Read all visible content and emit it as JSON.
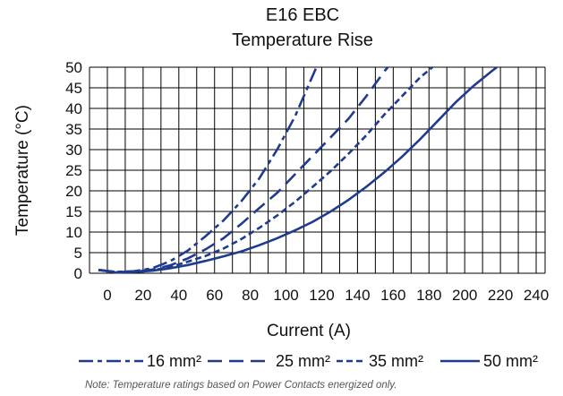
{
  "chart_data": {
    "type": "line",
    "title": "E16 EBC",
    "subtitle": "Temperature Rise",
    "xlabel": "Current (A)",
    "ylabel": "Temperature (°C)",
    "xlim": [
      -10,
      245
    ],
    "ylim": [
      0,
      50
    ],
    "x_ticks": [
      "0",
      "20",
      "40",
      "60",
      "80",
      "100",
      "120",
      "140",
      "160",
      "180",
      "200",
      "220",
      "240"
    ],
    "y_ticks": [
      "0",
      "5",
      "10",
      "15",
      "20",
      "25",
      "30",
      "35",
      "40",
      "45",
      "50"
    ],
    "grid": true,
    "line_color": "#1f3b8f",
    "series": [
      {
        "name": "16 mm²",
        "style": "dash-dot",
        "points": [
          [
            -5,
            0.8
          ],
          [
            5,
            0.3
          ],
          [
            15,
            0.5
          ],
          [
            25,
            1.2
          ],
          [
            35,
            2.9
          ],
          [
            45,
            5.5
          ],
          [
            55,
            9.0
          ],
          [
            65,
            12.8
          ],
          [
            75,
            17.5
          ],
          [
            85,
            23.0
          ],
          [
            95,
            30.0
          ],
          [
            105,
            38.0
          ],
          [
            112,
            45.0
          ],
          [
            117,
            50.0
          ]
        ]
      },
      {
        "name": "25 mm²",
        "style": "long-dash",
        "points": [
          [
            -5,
            0.8
          ],
          [
            5,
            0.3
          ],
          [
            15,
            0.4
          ],
          [
            25,
            0.9
          ],
          [
            35,
            1.9
          ],
          [
            45,
            3.6
          ],
          [
            55,
            5.8
          ],
          [
            65,
            8.5
          ],
          [
            75,
            12.0
          ],
          [
            85,
            15.8
          ],
          [
            95,
            19.5
          ],
          [
            105,
            24.0
          ],
          [
            115,
            28.5
          ],
          [
            125,
            33.0
          ],
          [
            135,
            37.5
          ],
          [
            145,
            43.0
          ],
          [
            155,
            49.0
          ],
          [
            157,
            50.0
          ]
        ]
      },
      {
        "name": "35 mm²",
        "style": "short-dash",
        "points": [
          [
            -5,
            0.8
          ],
          [
            5,
            0.3
          ],
          [
            15,
            0.3
          ],
          [
            25,
            0.7
          ],
          [
            35,
            1.5
          ],
          [
            45,
            2.8
          ],
          [
            55,
            4.2
          ],
          [
            65,
            6.0
          ],
          [
            75,
            8.3
          ],
          [
            85,
            11.0
          ],
          [
            95,
            14.0
          ],
          [
            105,
            17.3
          ],
          [
            115,
            21.0
          ],
          [
            125,
            24.8
          ],
          [
            135,
            29.0
          ],
          [
            145,
            33.5
          ],
          [
            155,
            38.5
          ],
          [
            165,
            43.0
          ],
          [
            175,
            47.5
          ],
          [
            182,
            50.0
          ]
        ]
      },
      {
        "name": "50 mm²",
        "style": "solid",
        "points": [
          [
            -5,
            0.8
          ],
          [
            5,
            0.2
          ],
          [
            15,
            0.3
          ],
          [
            25,
            0.6
          ],
          [
            35,
            1.2
          ],
          [
            45,
            2.0
          ],
          [
            55,
            3.0
          ],
          [
            65,
            4.1
          ],
          [
            75,
            5.3
          ],
          [
            85,
            6.8
          ],
          [
            95,
            8.5
          ],
          [
            105,
            10.4
          ],
          [
            115,
            12.5
          ],
          [
            125,
            15.0
          ],
          [
            135,
            17.8
          ],
          [
            145,
            21.0
          ],
          [
            155,
            24.5
          ],
          [
            165,
            28.3
          ],
          [
            175,
            32.5
          ],
          [
            185,
            37.0
          ],
          [
            195,
            41.5
          ],
          [
            205,
            45.5
          ],
          [
            215,
            49.0
          ],
          [
            218,
            50.0
          ]
        ]
      }
    ],
    "legend_position": "bottom"
  },
  "note": "Note: Temperature ratings based on Power Contacts energized only."
}
